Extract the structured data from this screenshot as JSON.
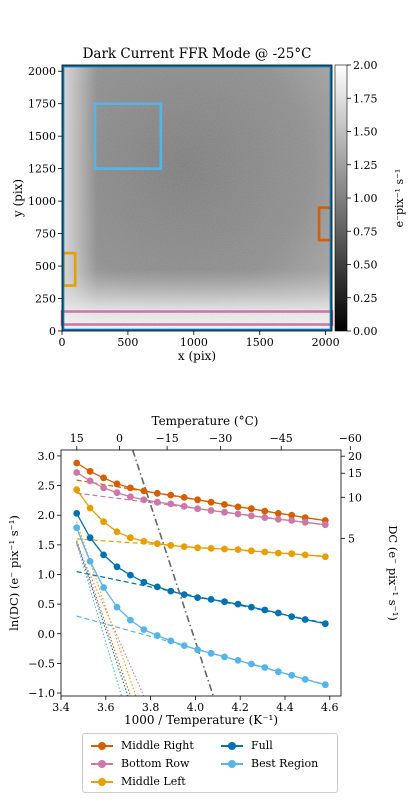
{
  "chart_data": [
    {
      "type": "heatmap",
      "title": "Dark Current FFR Mode @ -25°C",
      "xlabel": "x (pix)",
      "ylabel": "y (pix)",
      "xlim": [
        0,
        2048
      ],
      "ylim": [
        0,
        2048
      ],
      "x_ticks": [
        0,
        500,
        1000,
        1500,
        2000
      ],
      "y_ticks": [
        0,
        250,
        500,
        750,
        1000,
        1250,
        1500,
        1750,
        2000
      ],
      "colorbar": {
        "label": "e⁻pix⁻¹ s⁻¹",
        "range": [
          0,
          2.0
        ],
        "ticks": [
          "0.00",
          "0.25",
          "0.50",
          "0.75",
          "1.00",
          "1.25",
          "1.50",
          "1.75",
          "2.00"
        ]
      },
      "regions": [
        {
          "name": "Best Region",
          "color": "#56b4e9",
          "x": [
            250,
            750
          ],
          "y": [
            1250,
            1750
          ]
        },
        {
          "name": "Middle Right",
          "color": "#d55e00",
          "x": [
            1950,
            2040
          ],
          "y": [
            700,
            950
          ]
        },
        {
          "name": "Middle Left",
          "color": "#e69f00",
          "x": [
            10,
            100
          ],
          "y": [
            350,
            600
          ]
        },
        {
          "name": "Bottom Row",
          "color": "#cc79a7",
          "x": [
            0,
            2048
          ],
          "y": [
            50,
            150
          ]
        },
        {
          "name": "Full",
          "color": "#0072b2",
          "x": [
            0,
            2048
          ],
          "y": [
            0,
            2048
          ]
        }
      ]
    },
    {
      "type": "scatter",
      "xlabel": "1000 / Temperature (K⁻¹)",
      "ylabel": "ln(DC) (e⁻ pix⁻¹ s⁻¹)",
      "top_xlabel": "Temperature (°C)",
      "right_ylabel": "DC (e⁻ pix⁻¹ s⁻¹)",
      "xlim": [
        3.4,
        4.65
      ],
      "ylim": [
        -1.05,
        3.1
      ],
      "x_ticks": [
        "3.4",
        "3.6",
        "3.8",
        "4.0",
        "4.2",
        "4.4",
        "4.6"
      ],
      "y_ticks": [
        "−1.0",
        "−0.5",
        "0.0",
        "0.5",
        "1.0",
        "1.5",
        "2.0",
        "2.5",
        "3.0"
      ],
      "top_ticks": [
        "15",
        "0",
        "−15",
        "−30",
        "−45",
        "−60"
      ],
      "top_tick_values": [
        15,
        0,
        -15,
        -30,
        -45,
        -60
      ],
      "right_ticks": [
        "5",
        "10",
        "15",
        "20"
      ],
      "right_tick_values": [
        5,
        10,
        15,
        20
      ],
      "legend_position": "below",
      "x": [
        3.47,
        3.53,
        3.59,
        3.65,
        3.71,
        3.77,
        3.83,
        3.89,
        3.95,
        4.01,
        4.07,
        4.13,
        4.19,
        4.25,
        4.31,
        4.37,
        4.43,
        4.49,
        4.58
      ],
      "series": [
        {
          "name": "Middle Right",
          "color": "#d55e00",
          "values": [
            2.88,
            2.74,
            2.63,
            2.53,
            2.46,
            2.41,
            2.37,
            2.34,
            2.3,
            2.26,
            2.22,
            2.18,
            2.14,
            2.11,
            2.07,
            2.03,
            2.0,
            1.96,
            1.91
          ]
        },
        {
          "name": "Bottom Row",
          "color": "#cc79a7",
          "values": [
            2.72,
            2.58,
            2.46,
            2.38,
            2.31,
            2.26,
            2.22,
            2.19,
            2.15,
            2.11,
            2.08,
            2.05,
            2.02,
            1.99,
            1.96,
            1.93,
            1.91,
            1.88,
            1.84
          ]
        },
        {
          "name": "Middle Left",
          "color": "#e69f00",
          "values": [
            2.43,
            2.12,
            1.89,
            1.72,
            1.62,
            1.56,
            1.52,
            1.49,
            1.47,
            1.45,
            1.44,
            1.43,
            1.42,
            1.4,
            1.38,
            1.36,
            1.35,
            1.33,
            1.3
          ]
        },
        {
          "name": "Full",
          "color": "#0072b2",
          "values": [
            2.03,
            1.62,
            1.33,
            1.13,
            0.99,
            0.87,
            0.79,
            0.72,
            0.66,
            0.61,
            0.58,
            0.54,
            0.5,
            0.45,
            0.4,
            0.35,
            0.29,
            0.24,
            0.17
          ]
        },
        {
          "name": "Best Region",
          "color": "#56b4e9",
          "values": [
            1.79,
            1.22,
            0.78,
            0.45,
            0.23,
            0.07,
            -0.03,
            -0.12,
            -0.2,
            -0.27,
            -0.33,
            -0.39,
            -0.45,
            -0.51,
            -0.57,
            -0.64,
            -0.7,
            -0.77,
            -0.86
          ]
        }
      ]
    }
  ]
}
